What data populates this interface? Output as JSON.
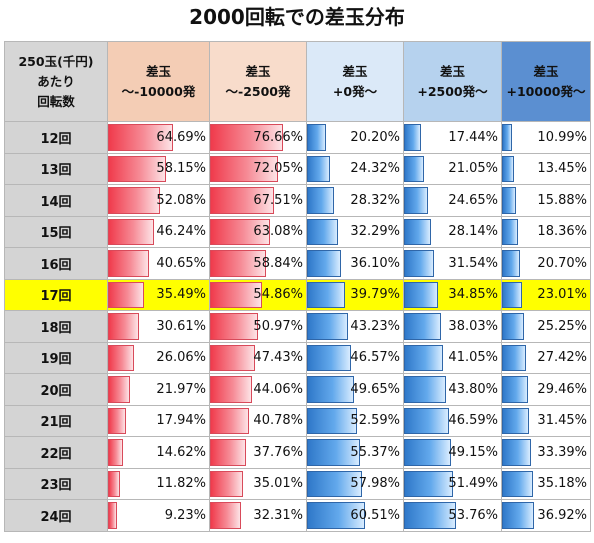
{
  "title": "2000回転での差玉分布",
  "chart_data": {
    "type": "table",
    "row_header": [
      "250玉(千円)",
      "あたり",
      "回転数"
    ],
    "columns": [
      [
        "差玉",
        "～-10000発"
      ],
      [
        "差玉",
        "～-2500発"
      ],
      [
        "差玉",
        "+0発～"
      ],
      [
        "差玉",
        "+2500発～"
      ],
      [
        "差玉",
        "+10000発～"
      ]
    ],
    "highlight_row": "17回",
    "rows": [
      {
        "label": "12回",
        "values": [
          64.69,
          76.66,
          20.2,
          17.44,
          10.99
        ]
      },
      {
        "label": "13回",
        "values": [
          58.15,
          72.05,
          24.32,
          21.05,
          13.45
        ]
      },
      {
        "label": "14回",
        "values": [
          52.08,
          67.51,
          28.32,
          24.65,
          15.88
        ]
      },
      {
        "label": "15回",
        "values": [
          46.24,
          63.08,
          32.29,
          28.14,
          18.36
        ]
      },
      {
        "label": "16回",
        "values": [
          40.65,
          58.84,
          36.1,
          31.54,
          20.7
        ]
      },
      {
        "label": "17回",
        "values": [
          35.49,
          54.86,
          39.79,
          34.85,
          23.01
        ]
      },
      {
        "label": "18回",
        "values": [
          30.61,
          50.97,
          43.23,
          38.03,
          25.25
        ]
      },
      {
        "label": "19回",
        "values": [
          26.06,
          47.43,
          46.57,
          41.05,
          27.42
        ]
      },
      {
        "label": "20回",
        "values": [
          21.97,
          44.06,
          49.65,
          43.8,
          29.46
        ]
      },
      {
        "label": "21回",
        "values": [
          17.94,
          40.78,
          52.59,
          46.59,
          31.45
        ]
      },
      {
        "label": "22回",
        "values": [
          14.62,
          37.76,
          55.37,
          49.15,
          33.39
        ]
      },
      {
        "label": "23回",
        "values": [
          11.82,
          35.01,
          57.98,
          51.49,
          35.18
        ]
      },
      {
        "label": "24回",
        "values": [
          9.23,
          32.31,
          60.51,
          53.76,
          36.92
        ]
      }
    ],
    "value_unit": "%",
    "colors": {
      "negative_bar": "#f03b4c",
      "positive_bar": "#2f78c9",
      "highlight": "#ffff00"
    }
  }
}
